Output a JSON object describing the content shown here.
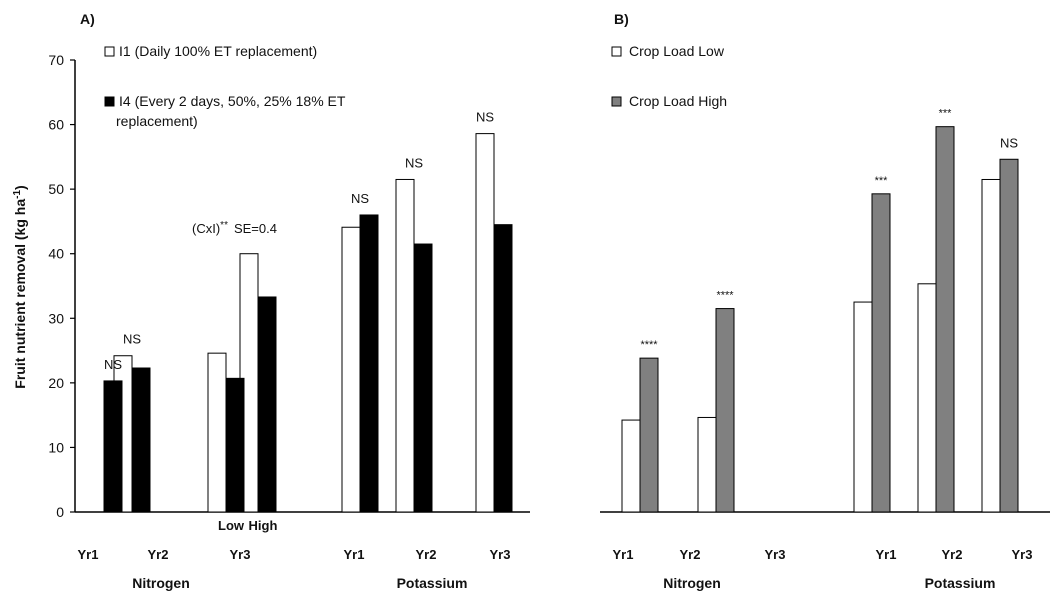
{
  "chart_data": [
    {
      "type": "bar",
      "panel_label": "A)",
      "ylabel": "Fruit nutrient removal (kg ha-1)",
      "ylabel_main": "Fruit nutrient removal (kg ha",
      "ylabel_sup": "-1",
      "ylabel_end": ")",
      "ylim": [
        0,
        70
      ],
      "yticks": [
        "0",
        "10",
        "20",
        "30",
        "40",
        "50",
        "60",
        "70"
      ],
      "grid": false,
      "legend_placement": "top-left",
      "series": [
        {
          "name": "I1 (Daily 100% ET replacement)",
          "color": "#ffffff",
          "values": [
            0,
            24.2,
            24.6,
            40.0,
            44.1,
            51.5,
            58.6
          ]
        },
        {
          "name": "I4 (Every 2 days, 50%, 25% 18% ET replacement)",
          "color": "#000000",
          "values": [
            20.3,
            22.3,
            20.7,
            33.3,
            46.0,
            41.5,
            44.5
          ]
        }
      ],
      "legend_lines": [
        [
          "I1 (Daily 100% ET replacement)"
        ],
        [
          "I4 (Every 2 days, 50%, 25% 18% ET",
          "replacement)"
        ]
      ],
      "bar_labels": [
        "",
        "",
        "Low",
        "High",
        "",
        "",
        ""
      ],
      "x_tick_labels": [
        "Yr1",
        "Yr2",
        "Yr3",
        "Yr1",
        "Yr2",
        "Yr3"
      ],
      "groups": [
        "Nitrogen",
        "Potassium"
      ],
      "annotations": [
        {
          "text": "NS",
          "near": "Nitrogen Yr1"
        },
        {
          "text": "NS",
          "near": "Nitrogen Yr2"
        },
        {
          "text": "NS",
          "near": "Potassium Yr1"
        },
        {
          "text": "NS",
          "near": "Potassium Yr2"
        },
        {
          "text": "NS",
          "near": "Potassium Yr3"
        }
      ],
      "interaction_note": {
        "main": "(CxI)",
        "sup": "**",
        "tail": "SE=0.4"
      }
    },
    {
      "type": "bar",
      "panel_label": "B)",
      "ylim": [
        0,
        70
      ],
      "grid": false,
      "legend_placement": "top-left",
      "series": [
        {
          "name": "Crop Load Low",
          "color": "#ffffff",
          "values": [
            14.1,
            14.5,
            null,
            32.2,
            35.0,
            51.0
          ]
        },
        {
          "name": "Crop Load High",
          "color": "#808080",
          "values": [
            23.6,
            31.2,
            null,
            48.8,
            59.1,
            54.1
          ]
        }
      ],
      "x_tick_labels": [
        "Yr1",
        "Yr2",
        "Yr3",
        "Yr1",
        "Yr2",
        "Yr3"
      ],
      "groups": [
        "Nitrogen",
        "Potassium"
      ],
      "significance": [
        "****",
        "****",
        "",
        "***",
        "***",
        "NS"
      ]
    }
  ]
}
